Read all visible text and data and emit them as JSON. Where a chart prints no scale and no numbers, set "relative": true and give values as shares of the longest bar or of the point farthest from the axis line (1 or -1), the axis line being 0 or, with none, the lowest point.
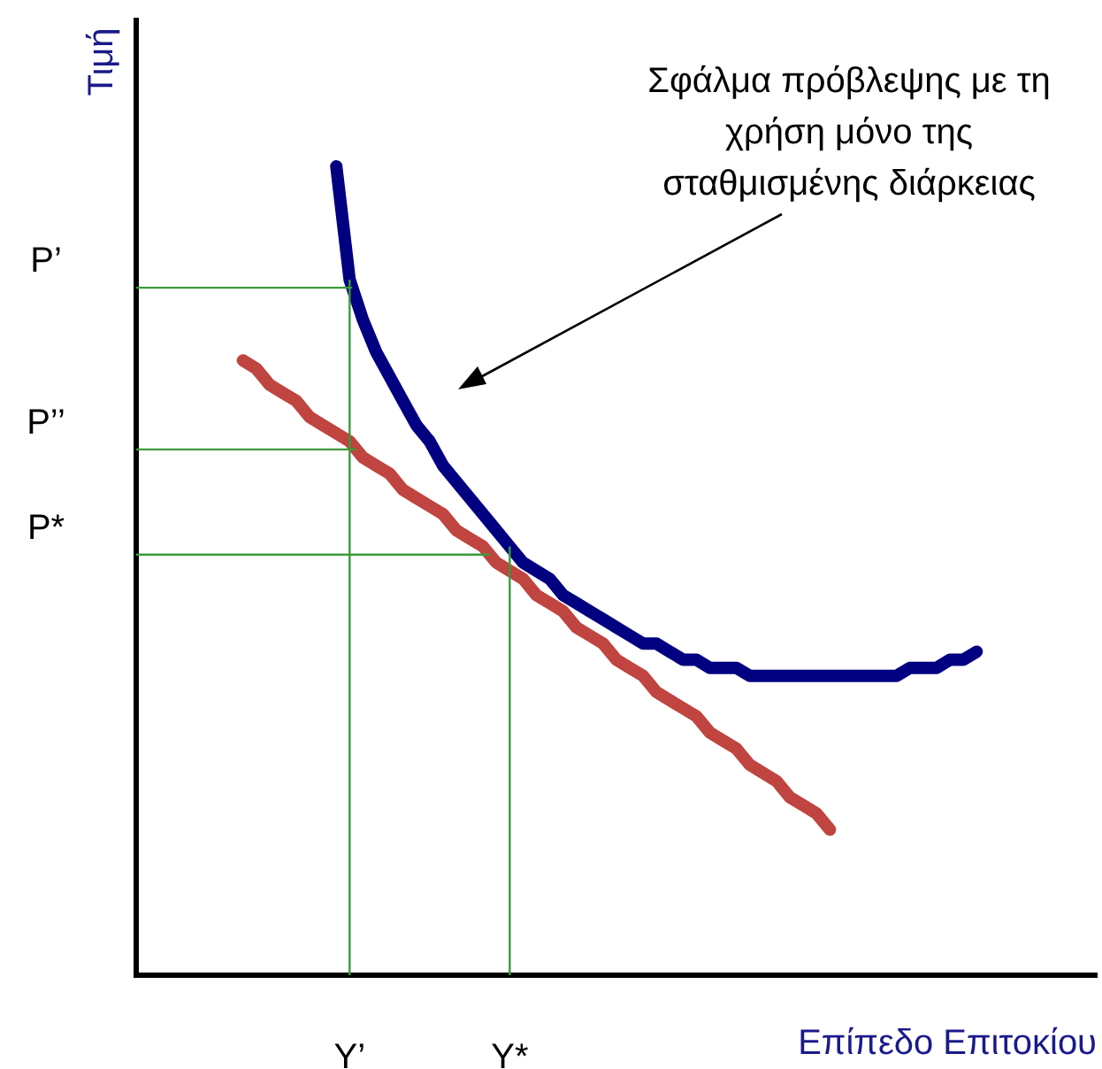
{
  "chart_data": {
    "type": "line",
    "ylabel": "Τιμή",
    "xlabel": "Επίπεδο Επιτοκίου",
    "relative": true,
    "grid": false,
    "legend": false,
    "categories": [
      null,
      null,
      null,
      null,
      null,
      null,
      null,
      null,
      null,
      null,
      null,
      null,
      null,
      null,
      null,
      null,
      "Y’",
      null,
      null,
      null,
      null,
      null,
      null,
      null,
      null,
      null,
      null,
      null,
      "Y*",
      null,
      null,
      null,
      null,
      null,
      null,
      null,
      null,
      null,
      null,
      null,
      null,
      null,
      null,
      null,
      null,
      null,
      null,
      null,
      null,
      null,
      null,
      null,
      null,
      null,
      null,
      null,
      null,
      null,
      null,
      null,
      null,
      null,
      null,
      null,
      null,
      null,
      null,
      null,
      null,
      null,
      null,
      null,
      null
    ],
    "series": [
      {
        "color": "#c0443f",
        "values": [
          null,
          null,
          null,
          null,
          null,
          null,
          null,
          null,
          0.76,
          0.75,
          0.73,
          0.72,
          0.71,
          0.69,
          0.68,
          0.67,
          0.66,
          0.64,
          0.63,
          0.62,
          0.6,
          0.59,
          0.58,
          0.57,
          0.55,
          0.54,
          0.53,
          0.51,
          0.5,
          0.49,
          0.47,
          0.46,
          0.45,
          0.43,
          0.42,
          0.41,
          0.39,
          0.38,
          0.37,
          0.35,
          0.34,
          0.33,
          0.32,
          0.3,
          0.29,
          0.28,
          0.26,
          0.25,
          0.24,
          0.22,
          0.21,
          0.2,
          0.18,
          null,
          null,
          null,
          null,
          null,
          null,
          null,
          null,
          null,
          null,
          null,
          null,
          null,
          null,
          null,
          null,
          null,
          null,
          null,
          null
        ]
      },
      {
        "color": "#000080",
        "values": [
          null,
          null,
          null,
          null,
          null,
          null,
          null,
          null,
          null,
          null,
          null,
          null,
          null,
          null,
          null,
          1.0,
          0.86,
          0.81,
          0.77,
          0.74,
          0.71,
          0.68,
          0.66,
          0.63,
          0.61,
          0.59,
          0.57,
          0.55,
          0.53,
          0.51,
          0.5,
          0.49,
          0.47,
          0.46,
          0.45,
          0.44,
          0.43,
          0.42,
          0.41,
          0.41,
          0.4,
          0.39,
          0.39,
          0.38,
          0.38,
          0.38,
          0.37,
          0.37,
          0.37,
          0.37,
          0.37,
          0.37,
          0.37,
          0.37,
          0.37,
          0.37,
          0.37,
          0.37,
          0.38,
          0.38,
          0.38,
          0.39,
          0.39,
          0.4,
          null,
          null,
          null,
          null,
          null,
          null,
          null,
          null,
          null
        ]
      }
    ],
    "ref_lines": [
      {
        "axis": "y",
        "value": 0.85,
        "label": "P’",
        "color": "#3c9a3c"
      },
      {
        "axis": "y",
        "value": 0.65,
        "label": "P’’",
        "color": "#3c9a3c"
      },
      {
        "axis": "y",
        "value": 0.52,
        "label": "P*",
        "color": "#3c9a3c"
      },
      {
        "axis": "x",
        "value": "Y’",
        "label": null,
        "color": "#3c9a3c"
      },
      {
        "axis": "x",
        "value": "Y*",
        "label": null,
        "color": "#3c9a3c"
      }
    ],
    "annotations": [
      "Σφάλμα πρόβλεψης με τη χρήση μόνο της σταθμισμένης διάρκειας"
    ]
  }
}
